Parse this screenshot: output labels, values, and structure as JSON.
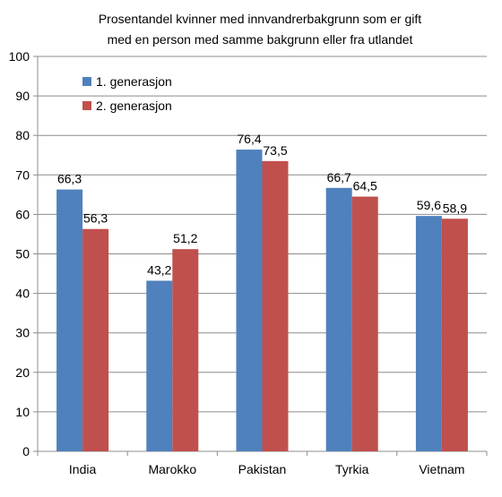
{
  "chart_data": {
    "type": "bar",
    "title": "Prosentandel kvinner med innvandrerbakgrunn som er gift",
    "subtitle": "med en person med samme bakgrunn eller fra utlandet",
    "xlabel": "",
    "ylabel": "",
    "categories": [
      "India",
      "Marokko",
      "Pakistan",
      "Tyrkia",
      "Vietnam"
    ],
    "series": [
      {
        "name": "1. generasjon",
        "values": [
          66.3,
          43.2,
          76.4,
          66.7,
          59.6
        ],
        "labels": [
          "66,3",
          "43,2",
          "76,4",
          "66,7",
          "59,6"
        ],
        "color": "#4f81bd"
      },
      {
        "name": "2. generasjon",
        "values": [
          56.3,
          51.2,
          73.5,
          64.5,
          58.9
        ],
        "labels": [
          "56,3",
          "51,2",
          "73,5",
          "64,5",
          "58,9"
        ],
        "color": "#c0504d"
      }
    ],
    "ylim": [
      0,
      100
    ],
    "yticks": [
      0,
      10,
      20,
      30,
      40,
      50,
      60,
      70,
      80,
      90,
      100
    ],
    "grid": true,
    "legend": "top-left"
  }
}
